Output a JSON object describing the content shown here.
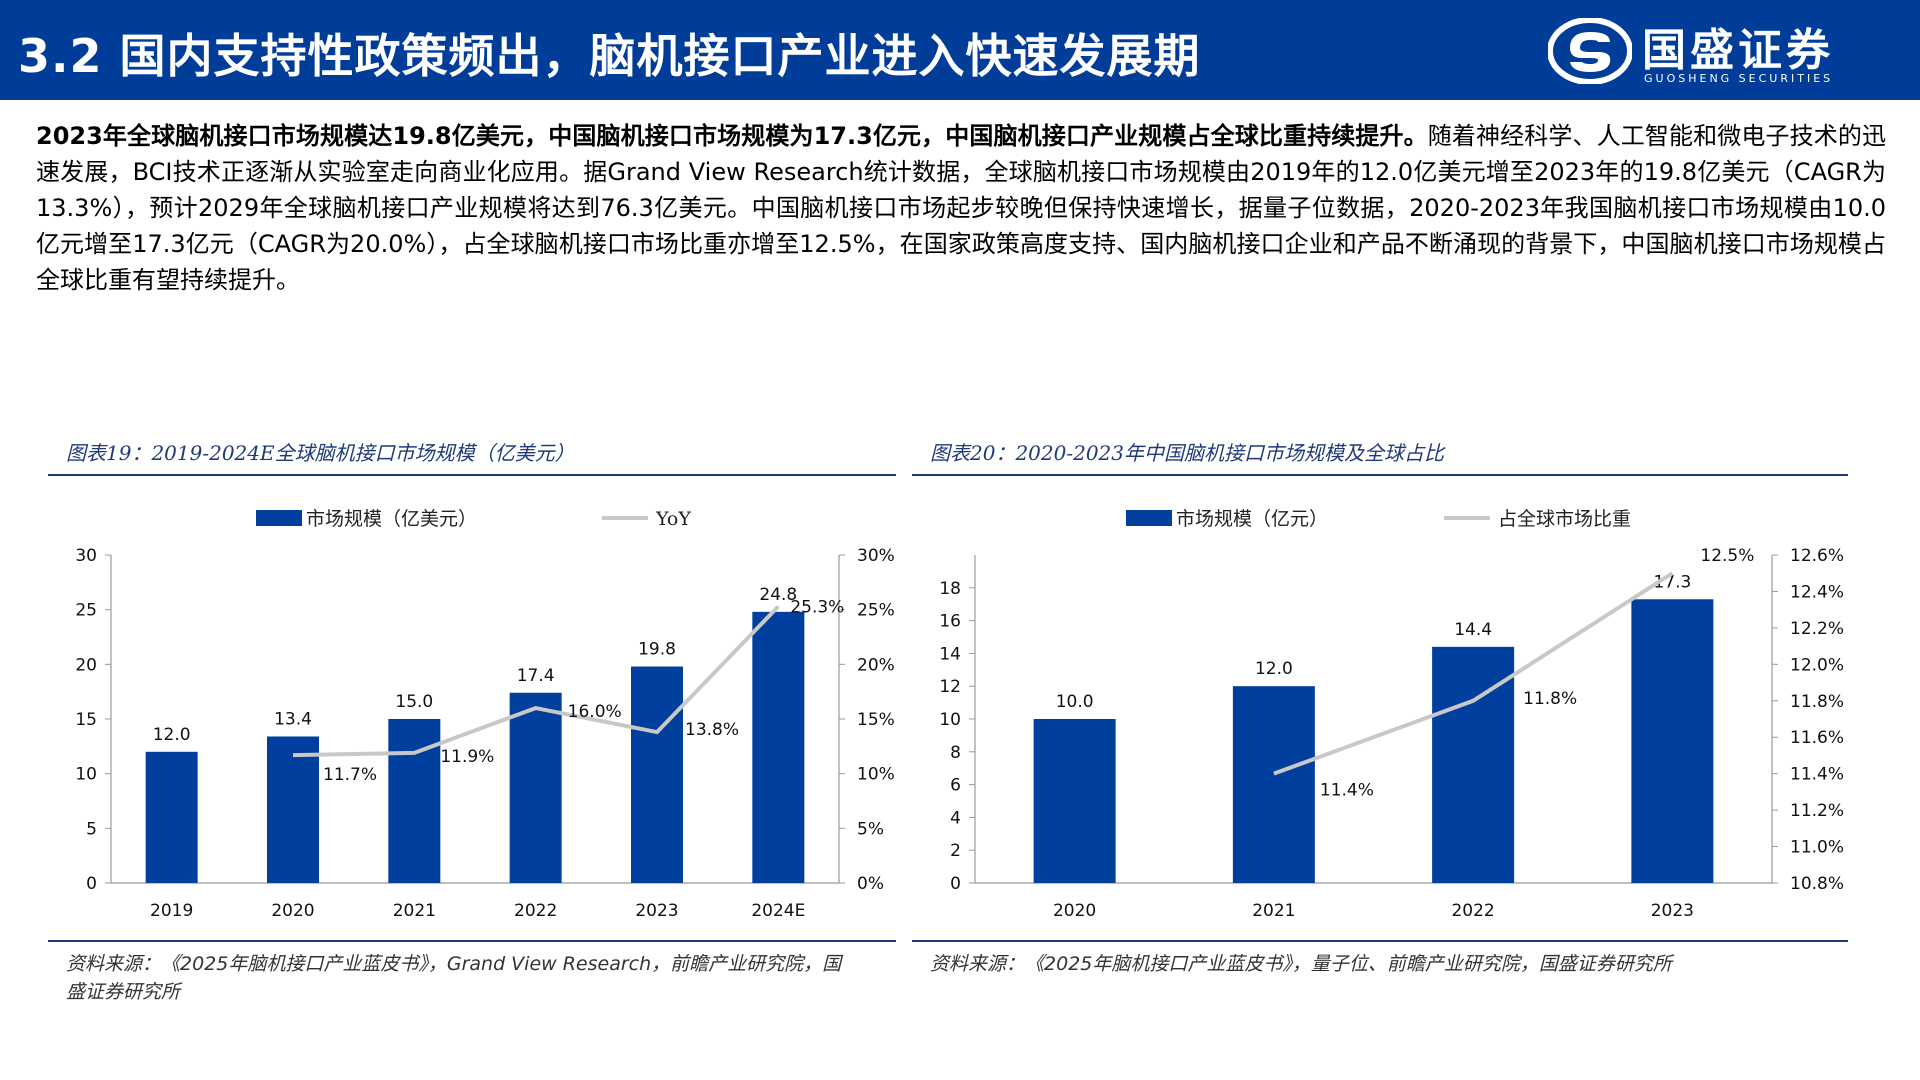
{
  "header": {
    "title": "3.2 国内支持性政策频出，脑机接口产业进入快速发展期",
    "logo_cn": "国盛证券",
    "logo_en": "GUOSHENG SECURITIES"
  },
  "intro": {
    "bold": "2023年全球脑机接口市场规模达19.8亿美元，中国脑机接口市场规模为17.3亿元，中国脑机接口产业规模占全球比重持续提升。",
    "body": "随着神经科学、人工智能和微电子技术的迅速发展，BCI技术正逐渐从实验室走向商业化应用。据Grand View Research统计数据，全球脑机接口市场规模由2019年的12.0亿美元增至2023年的19.8亿美元（CAGR为13.3%），预计2029年全球脑机接口产业规模将达到76.3亿美元。中国脑机接口市场起步较晚但保持快速增长，据量子位数据，2020-2023年我国脑机接口市场规模由10.0亿元增至17.3亿元（CAGR为20.0%），占全球脑机接口市场比重亦增至12.5%，在国家政策高度支持、国内脑机接口企业和产品不断涌现的背景下，中国脑机接口市场规模占全球比重有望持续提升。"
  },
  "colors": {
    "brand": "#003d99",
    "bar": "#003f9e",
    "line": "#c8c8c8",
    "caption": "#1f3a7a"
  },
  "chart_data": [
    {
      "type": "bar",
      "caption": "图表19：2019-2024E全球脑机接口市场规模（亿美元）",
      "source": "资料来源：《2025年脑机接口产业蓝皮书》，Grand View Research，前瞻产业研究院，国盛证券研究所",
      "categories": [
        "2019",
        "2020",
        "2021",
        "2022",
        "2023",
        "2024E"
      ],
      "series": [
        {
          "name": "市场规模（亿美元）",
          "kind": "bar",
          "axis": "left",
          "values": [
            12.0,
            13.4,
            15.0,
            17.4,
            19.8,
            24.8
          ],
          "labels": [
            "12.0",
            "13.4",
            "15.0",
            "17.4",
            "19.8",
            "24.8"
          ]
        },
        {
          "name": "YoY",
          "kind": "line",
          "axis": "right",
          "values": [
            null,
            11.7,
            11.9,
            16.0,
            13.8,
            25.3
          ],
          "labels": [
            "",
            "11.7%",
            "11.9%",
            "16.0%",
            "13.8%",
            "25.3%"
          ]
        }
      ],
      "y_left": {
        "min": 0,
        "max": 30,
        "ticks": [
          "0",
          "5",
          "10",
          "15",
          "20",
          "25",
          "30"
        ]
      },
      "y_right": {
        "min": 0,
        "max": 30,
        "ticks": [
          "0%",
          "5%",
          "10%",
          "15%",
          "20%",
          "25%",
          "30%"
        ]
      },
      "legend": "top",
      "grid": false
    },
    {
      "type": "bar",
      "caption": "图表20：2020-2023年中国脑机接口市场规模及全球占比",
      "source": "资料来源：《2025年脑机接口产业蓝皮书》，量子位、前瞻产业研究院，国盛证券研究所",
      "categories": [
        "2020",
        "2021",
        "2022",
        "2023"
      ],
      "series": [
        {
          "name": "市场规模（亿元）",
          "kind": "bar",
          "axis": "left",
          "values": [
            10.0,
            12.0,
            14.4,
            17.3
          ],
          "labels": [
            "10.0",
            "12.0",
            "14.4",
            "17.3"
          ]
        },
        {
          "name": "占全球市场比重",
          "kind": "line",
          "axis": "right",
          "values": [
            null,
            11.4,
            11.8,
            12.5
          ],
          "labels": [
            "",
            "11.4%",
            "11.8%",
            "12.5%"
          ]
        }
      ],
      "y_left": {
        "min": 0,
        "max": 20,
        "ticks": [
          "0",
          "2",
          "4",
          "6",
          "8",
          "10",
          "12",
          "14",
          "16",
          "18"
        ]
      },
      "y_right": {
        "min": 10.8,
        "max": 12.6,
        "ticks": [
          "10.8%",
          "11.0%",
          "11.2%",
          "11.4%",
          "11.6%",
          "11.8%",
          "12.0%",
          "12.2%",
          "12.4%",
          "12.6%"
        ]
      },
      "legend": "top",
      "grid": false
    }
  ]
}
